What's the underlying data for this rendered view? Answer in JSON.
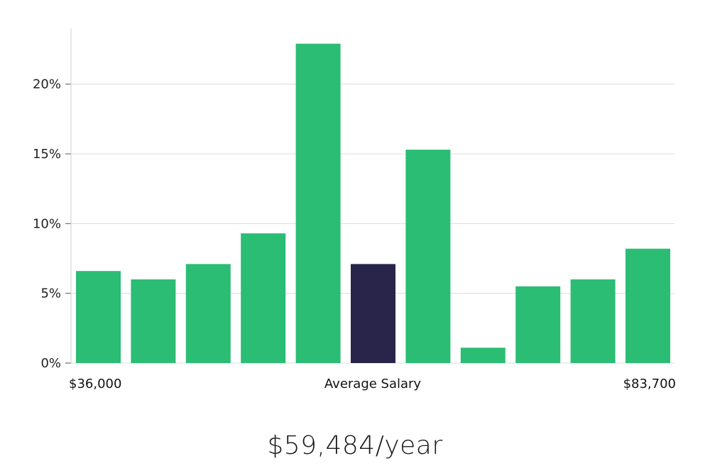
{
  "chart_data": {
    "type": "bar",
    "ylim": [
      0,
      24
    ],
    "yticks": [
      0,
      5,
      10,
      15,
      20
    ],
    "ytick_labels": [
      "0%",
      "5%",
      "10%",
      "15%",
      "20%"
    ],
    "values": [
      6.6,
      6.0,
      7.1,
      9.3,
      22.9,
      7.1,
      15.3,
      1.1,
      5.5,
      6.0,
      8.2
    ],
    "highlight_index": 5,
    "x_min_label": "$36,000",
    "xlabel": "Average Salary",
    "x_max_label": "$83,700",
    "grid": true
  },
  "colors": {
    "bar": "#2bbd74",
    "highlight": "#28244a",
    "grid": "#dcdcdc",
    "axis": "#cfcfcf"
  },
  "summary": {
    "average_salary": "$59,484/year"
  }
}
